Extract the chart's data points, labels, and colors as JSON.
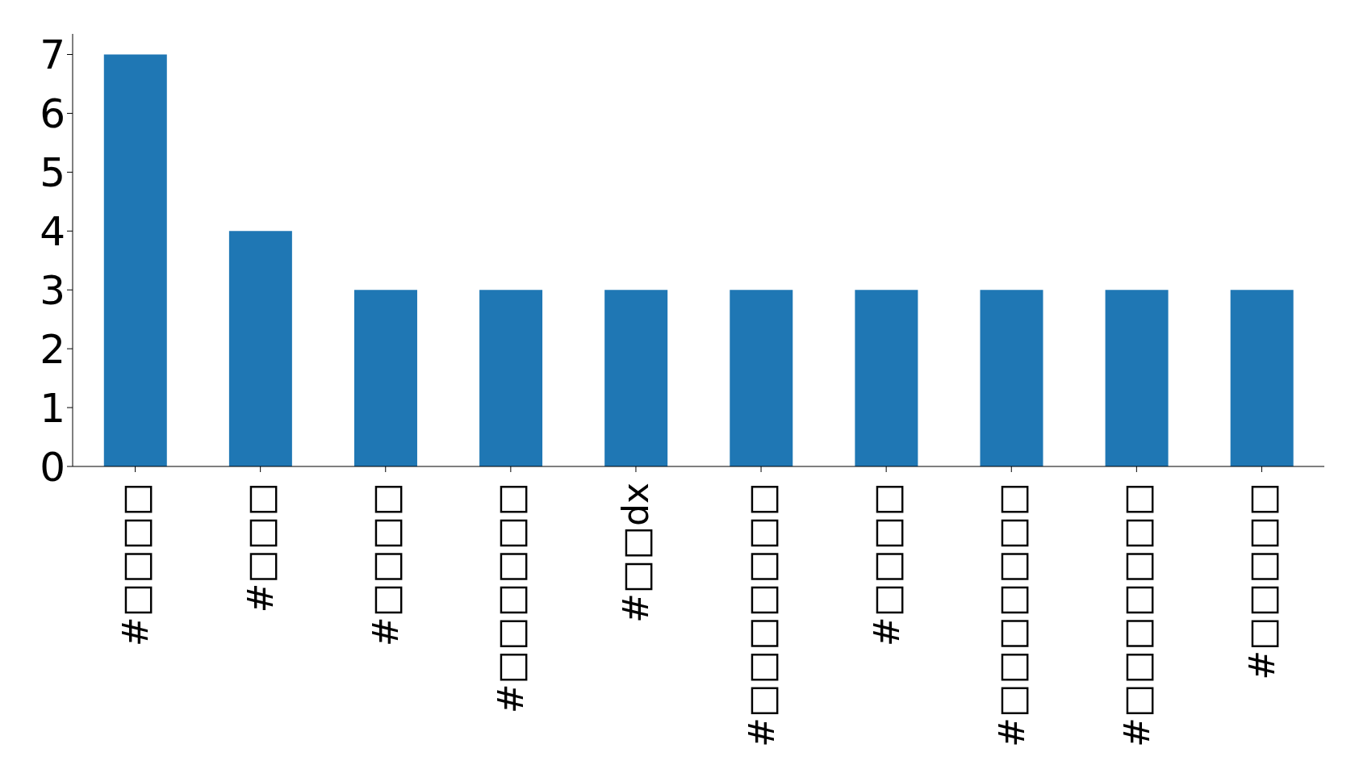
{
  "chart_data": {
    "type": "bar",
    "categories": [
      "#□□□□",
      "#□□□",
      "#□□□□",
      "#□□□□□□",
      "#□□dx",
      "#□□□□□□□",
      "#□□□□",
      "#□□□□□□□",
      "#□□□□□□□",
      "#□□□□□"
    ],
    "values": [
      7,
      4,
      3,
      3,
      3,
      3,
      3,
      3,
      3,
      3
    ],
    "color": "#1f77b4",
    "ylim": [
      0,
      7.35
    ],
    "yticks": [
      0,
      1,
      2,
      3,
      4,
      5,
      6,
      7
    ]
  }
}
